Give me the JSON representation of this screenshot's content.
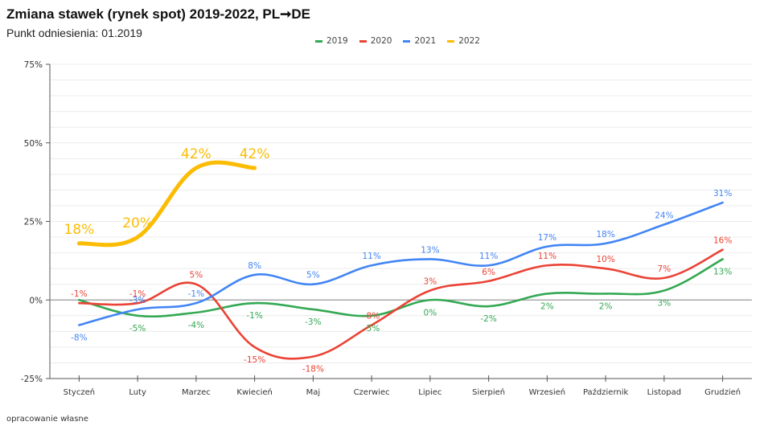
{
  "header": {
    "title": "Zmiana stawek (rynek spot) 2019-2022, PL➞DE",
    "subtitle": "Punkt odniesienia: 01.2019"
  },
  "footer": {
    "source": "opracowanie własne"
  },
  "chart_data": {
    "type": "line",
    "title": "Zmiana stawek (rynek spot) 2019-2022, PL➞DE",
    "subtitle": "Punkt odniesienia: 01.2019",
    "xlabel": "",
    "ylabel": "",
    "categories": [
      "Styczeń",
      "Luty",
      "Marzec",
      "Kwiecień",
      "Maj",
      "Czerwiec",
      "Lipiec",
      "Sierpień",
      "Wrzesień",
      "Październik",
      "Listopad",
      "Grudzień"
    ],
    "ylim": [
      -25,
      75
    ],
    "yticks": [
      -25,
      0,
      25,
      50,
      75
    ],
    "ytick_labels": [
      "-25%",
      "0%",
      "25%",
      "50%",
      "75%"
    ],
    "grid": true,
    "legend": "top-center",
    "series": [
      {
        "name": "2019",
        "color": "#34a853",
        "values": [
          0,
          -5,
          -4,
          -1,
          -3,
          -5,
          0,
          -2,
          2,
          2,
          3,
          13
        ],
        "labels": [
          "",
          "-5%",
          "-4%",
          "-1%",
          "-3%",
          "-5%",
          "0%",
          "-2%",
          "2%",
          "2%",
          "3%",
          "13%"
        ]
      },
      {
        "name": "2020",
        "color": "#ea4335",
        "values": [
          -1,
          -1,
          5,
          -15,
          -18,
          -8,
          3,
          6,
          11,
          10,
          7,
          16
        ],
        "labels": [
          "-1%",
          "-1%",
          "5%",
          "-15%",
          "-18%",
          "-8%",
          "3%",
          "6%",
          "11%",
          "10%",
          "7%",
          "16%"
        ]
      },
      {
        "name": "2021",
        "color": "#4285f4",
        "values": [
          -8,
          -3,
          -1,
          8,
          5,
          11,
          13,
          11,
          17,
          18,
          24,
          31
        ],
        "labels": [
          "-8%",
          "-3%",
          "-1%",
          "8%",
          "5%",
          "11%",
          "13%",
          "11%",
          "17%",
          "18%",
          "24%",
          "31%"
        ]
      },
      {
        "name": "2022",
        "color": "#fbbc04",
        "values": [
          18,
          20,
          42,
          42
        ],
        "labels": [
          "18%",
          "20%",
          "42%",
          "42%"
        ]
      }
    ]
  }
}
